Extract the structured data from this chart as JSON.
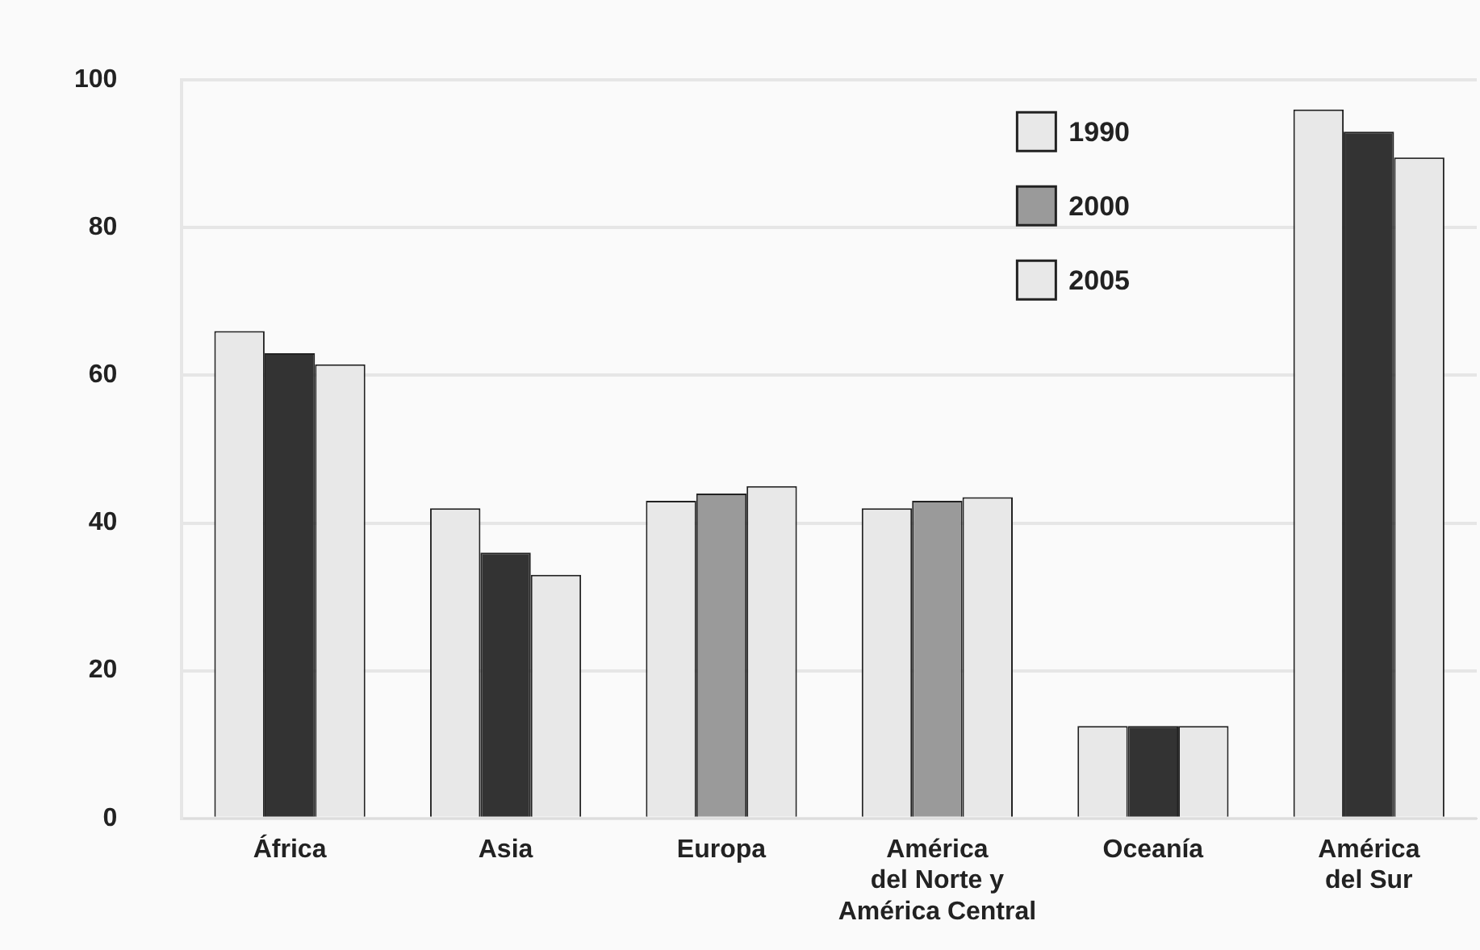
{
  "chart_data": {
    "type": "bar",
    "categories": [
      "África",
      "Asia",
      "Europa",
      "América\ndel Norte y\nAmérica Central",
      "Oceanía",
      "América\ndel Sur"
    ],
    "series": [
      {
        "name": "1990",
        "color": "#e8e8e8",
        "values": [
          66,
          42,
          43,
          42,
          12.5,
          96
        ]
      },
      {
        "name": "2000",
        "color": "#9a9a9a",
        "colors": [
          "#333333",
          "#333333",
          "#9a9a9a",
          "#9a9a9a",
          "#333333",
          "#333333"
        ],
        "values": [
          63,
          36,
          44,
          43,
          12.5,
          93
        ]
      },
      {
        "name": "2005",
        "color": "#e8e8e8",
        "values": [
          61.5,
          33,
          45,
          43.5,
          12.5,
          89.5
        ]
      }
    ],
    "ylim": [
      0,
      100
    ],
    "yticks": [
      0,
      20,
      40,
      60,
      80,
      100
    ],
    "grid": "y",
    "legend": "top right"
  }
}
